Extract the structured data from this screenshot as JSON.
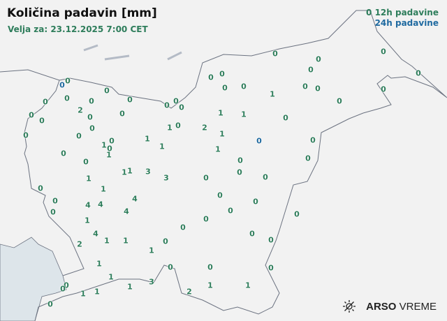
{
  "title": "Količina padavin [mm]",
  "subtitle": "Velja za: 23.12.2025 7:00 CET",
  "legend": {
    "sample": "0",
    "label_12h": "12h padavine",
    "label_24h": "24h padavine",
    "color_12h": "#2e7d5b",
    "color_24h": "#1f6aa0"
  },
  "logo": {
    "brand": "ARSO",
    "product": "VREME",
    "icon": "sun-icon"
  },
  "stations": {
    "values": [
      "0",
      "0",
      "0",
      "0",
      "0",
      "0",
      "0",
      "0",
      "0",
      "0",
      "2",
      "0",
      "0",
      "0",
      "0",
      "0",
      "0",
      "0",
      "1",
      "0",
      "1",
      "2",
      "1",
      "0",
      "0",
      "1",
      "1",
      "0",
      "0",
      "1",
      "1",
      "3",
      "3",
      "1",
      "1",
      "0",
      "0",
      "0",
      "4",
      "4",
      "4",
      "4",
      "1",
      "4",
      "1",
      "1",
      "2",
      "0",
      "1",
      "0",
      "0",
      "0",
      "1",
      "1",
      "0",
      "1",
      "3",
      "1",
      "1",
      "0",
      "0",
      "0",
      "2",
      "1",
      "0",
      "1",
      "0",
      "0",
      "0",
      "0",
      "0",
      "0",
      "0",
      "0",
      "0",
      "1",
      "0",
      "0",
      "0",
      "0",
      "1",
      "1",
      "0",
      "1",
      "1",
      "0",
      "0",
      "0",
      "0",
      "0",
      "0",
      "0",
      "0",
      "0",
      "0",
      "0",
      "0",
      "0",
      "0"
    ],
    "types": [
      "12h",
      "24h",
      "12h",
      "12h",
      "12h",
      "12h",
      "12h",
      "12h",
      "12h",
      "12h",
      "12h",
      "12h",
      "12h",
      "12h",
      "12h",
      "12h",
      "12h",
      "12h",
      "12h",
      "12h",
      "12h",
      "12h",
      "12h",
      "12h",
      "12h",
      "12h",
      "12h",
      "12h",
      "12h",
      "12h",
      "12h",
      "12h",
      "12h",
      "12h",
      "12h",
      "12h",
      "12h",
      "12h",
      "12h",
      "12h",
      "12h",
      "12h",
      "12h",
      "12h",
      "12h",
      "12h",
      "12h",
      "12h",
      "12h",
      "12h",
      "12h",
      "12h",
      "12h",
      "12h",
      "12h",
      "12h",
      "12h",
      "12h",
      "12h",
      "12h",
      "12h",
      "12h",
      "12h",
      "12h",
      "12h",
      "12h",
      "12h",
      "12h",
      "12h",
      "12h",
      "12h",
      "12h",
      "12h",
      "12h",
      "12h",
      "12h",
      "12h",
      "12h",
      "12h",
      "12h",
      "12h",
      "12h",
      "12h",
      "12h",
      "12h",
      "24h",
      "12h",
      "12h",
      "12h",
      "12h",
      "12h",
      "12h",
      "12h",
      "12h",
      "12h",
      "12h",
      "12h",
      "12h",
      "12h"
    ]
  }
}
